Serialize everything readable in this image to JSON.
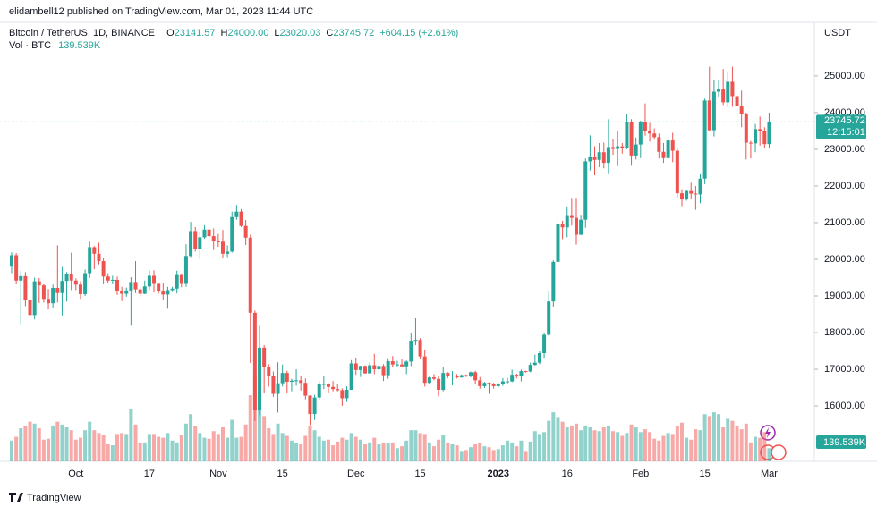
{
  "header": {
    "publisher": "elidambell12 published on TradingView.com, Mar 01, 2023 11:44 UTC"
  },
  "legend": {
    "symbol": "Bitcoin / TetherUS, 1D, BINANCE",
    "ohlc": [
      {
        "key": "O",
        "value": "23141.57"
      },
      {
        "key": "H",
        "value": "24000.00"
      },
      {
        "key": "L",
        "value": "23020.03"
      },
      {
        "key": "C",
        "value": "23745.72"
      }
    ],
    "change": "+604.15 (+2.61%)",
    "volume_name": "Vol · BTC"
  },
  "footer": {
    "brand": "TradingView"
  },
  "chart_data": {
    "type": "candlestick",
    "currency": "USDT",
    "countdown": "12:15:01",
    "up_color": "#26a69a",
    "down_color": "#ef5350",
    "grid": false,
    "ylim": [
      14490,
      26460
    ],
    "yticks": [
      {
        "value": 16000,
        "label": "16000.00"
      },
      {
        "value": 17000,
        "label": "17000.00"
      },
      {
        "value": 18000,
        "label": "18000.00"
      },
      {
        "value": 19000,
        "label": "19000.00"
      },
      {
        "value": 20000,
        "label": "20000.00"
      },
      {
        "value": 21000,
        "label": "21000.00"
      },
      {
        "value": 22000,
        "label": "22000.00"
      },
      {
        "value": 23000,
        "label": "23000.00"
      },
      {
        "value": 24000,
        "label": "24000.00"
      },
      {
        "value": 25000,
        "label": "25000.00"
      }
    ],
    "categories": [
      null,
      null,
      null,
      null,
      null,
      null,
      null,
      null,
      null,
      null,
      null,
      null,
      null,
      null,
      "Oct",
      null,
      null,
      null,
      null,
      null,
      null,
      null,
      null,
      null,
      null,
      null,
      null,
      null,
      null,
      null,
      "17",
      null,
      null,
      null,
      null,
      null,
      null,
      null,
      null,
      null,
      null,
      null,
      null,
      null,
      null,
      "Nov",
      null,
      null,
      null,
      null,
      null,
      null,
      null,
      null,
      null,
      null,
      null,
      null,
      null,
      "15",
      null,
      null,
      null,
      null,
      null,
      null,
      null,
      null,
      null,
      null,
      null,
      null,
      null,
      null,
      null,
      "Dec",
      null,
      null,
      null,
      null,
      null,
      null,
      null,
      null,
      null,
      null,
      null,
      null,
      null,
      "15",
      null,
      null,
      null,
      null,
      null,
      null,
      null,
      null,
      null,
      null,
      null,
      null,
      null,
      null,
      null,
      null,
      "2023",
      null,
      null,
      null,
      null,
      null,
      null,
      null,
      null,
      null,
      null,
      null,
      null,
      null,
      null,
      "16",
      null,
      null,
      null,
      null,
      null,
      null,
      null,
      null,
      null,
      null,
      null,
      null,
      null,
      null,
      null,
      "Feb",
      null,
      null,
      null,
      null,
      null,
      null,
      null,
      null,
      null,
      null,
      null,
      null,
      null,
      "15",
      null,
      null,
      null,
      null,
      null,
      null,
      null,
      null,
      null,
      null,
      null,
      null,
      null,
      "Mar"
    ],
    "candles": [
      [
        19800,
        20190,
        19620,
        20110
      ],
      [
        20110,
        20170,
        19320,
        19420
      ],
      [
        19420,
        19690,
        18230,
        19540
      ],
      [
        19540,
        19650,
        18720,
        18880
      ],
      [
        18880,
        19960,
        18130,
        18480
      ],
      [
        18480,
        19500,
        18360,
        19400
      ],
      [
        19400,
        19490,
        18810,
        19290
      ],
      [
        19290,
        19320,
        18820,
        18920
      ],
      [
        18920,
        19190,
        18630,
        18800
      ],
      [
        18800,
        19310,
        18680,
        19220
      ],
      [
        19220,
        20380,
        18820,
        19080
      ],
      [
        19080,
        19790,
        18470,
        19410
      ],
      [
        19410,
        19650,
        18850,
        19590
      ],
      [
        19590,
        20180,
        19160,
        19420
      ],
      [
        19420,
        19480,
        19160,
        19310
      ],
      [
        19310,
        19400,
        18920,
        19050
      ],
      [
        19050,
        19720,
        19000,
        19620
      ],
      [
        19620,
        20480,
        19490,
        20330
      ],
      [
        20330,
        20360,
        19730,
        20150
      ],
      [
        20150,
        20450,
        19860,
        19950
      ],
      [
        19950,
        20050,
        19320,
        19530
      ],
      [
        19530,
        19620,
        19360,
        19420
      ],
      [
        19420,
        19550,
        19320,
        19440
      ],
      [
        19440,
        19530,
        19030,
        19130
      ],
      [
        19130,
        19250,
        18860,
        19060
      ],
      [
        19060,
        19230,
        18980,
        19150
      ],
      [
        19150,
        19510,
        18190,
        19380
      ],
      [
        19380,
        19950,
        19080,
        19180
      ],
      [
        19180,
        19230,
        18980,
        19060
      ],
      [
        19060,
        19420,
        19050,
        19260
      ],
      [
        19260,
        19690,
        19160,
        19550
      ],
      [
        19550,
        19700,
        19100,
        19330
      ],
      [
        19330,
        19360,
        19060,
        19120
      ],
      [
        19120,
        19350,
        18900,
        19040
      ],
      [
        19040,
        19250,
        18650,
        19160
      ],
      [
        19160,
        19250,
        19110,
        19200
      ],
      [
        19200,
        19690,
        19070,
        19570
      ],
      [
        19570,
        19600,
        19240,
        19330
      ],
      [
        19330,
        20410,
        19250,
        20090
      ],
      [
        20090,
        21020,
        20060,
        20770
      ],
      [
        20770,
        20880,
        20210,
        20290
      ],
      [
        20290,
        20750,
        20000,
        20600
      ],
      [
        20600,
        20930,
        20560,
        20810
      ],
      [
        20810,
        20830,
        20510,
        20630
      ],
      [
        20630,
        20840,
        20250,
        20490
      ],
      [
        20490,
        20690,
        20340,
        20480
      ],
      [
        20480,
        20800,
        20050,
        20150
      ],
      [
        20150,
        20380,
        20060,
        20210
      ],
      [
        20210,
        21300,
        20180,
        21150
      ],
      [
        21150,
        21480,
        21080,
        21300
      ],
      [
        21300,
        21370,
        20880,
        20910
      ],
      [
        20910,
        21070,
        20390,
        20590
      ],
      [
        20590,
        20670,
        17170,
        18540
      ],
      [
        18540,
        18600,
        15590,
        15880
      ],
      [
        15880,
        18190,
        15750,
        17590
      ],
      [
        17590,
        17660,
        16360,
        17070
      ],
      [
        17070,
        17140,
        16530,
        16810
      ],
      [
        16810,
        16940,
        16250,
        16330
      ],
      [
        16330,
        17190,
        15820,
        16620
      ],
      [
        16620,
        17130,
        16530,
        16900
      ],
      [
        16900,
        16960,
        16360,
        16660
      ],
      [
        16660,
        16740,
        16400,
        16690
      ],
      [
        16690,
        17000,
        16550,
        16700
      ],
      [
        16700,
        16820,
        16420,
        16630
      ],
      [
        16630,
        16750,
        16180,
        16280
      ],
      [
        16280,
        16290,
        15480,
        15780
      ],
      [
        15780,
        16300,
        15620,
        16230
      ],
      [
        16230,
        16680,
        16170,
        16600
      ],
      [
        16600,
        16810,
        16460,
        16600
      ],
      [
        16600,
        16620,
        16350,
        16520
      ],
      [
        16520,
        16680,
        16400,
        16460
      ],
      [
        16460,
        16600,
        16400,
        16430
      ],
      [
        16430,
        16480,
        16000,
        16210
      ],
      [
        16210,
        16530,
        16110,
        16440
      ],
      [
        16440,
        17250,
        16440,
        17160
      ],
      [
        17160,
        17320,
        16850,
        16980
      ],
      [
        16980,
        17100,
        16790,
        17090
      ],
      [
        17090,
        17110,
        16880,
        16890
      ],
      [
        16890,
        17190,
        16880,
        17110
      ],
      [
        17110,
        17420,
        16870,
        17000
      ],
      [
        17000,
        17110,
        16910,
        17090
      ],
      [
        17090,
        17140,
        16680,
        16840
      ],
      [
        16840,
        17300,
        16740,
        17220
      ],
      [
        17220,
        17360,
        17060,
        17130
      ],
      [
        17130,
        17230,
        17080,
        17130
      ],
      [
        17130,
        17270,
        17070,
        17080
      ],
      [
        17080,
        17240,
        16870,
        17210
      ],
      [
        17210,
        18000,
        17090,
        17780
      ],
      [
        17780,
        18390,
        17660,
        17800
      ],
      [
        17800,
        17850,
        17270,
        17350
      ],
      [
        17350,
        17530,
        16530,
        16630
      ],
      [
        16630,
        16800,
        16590,
        16780
      ],
      [
        16780,
        16870,
        16700,
        16740
      ],
      [
        16740,
        16810,
        16260,
        16440
      ],
      [
        16440,
        17060,
        16400,
        16900
      ],
      [
        16900,
        16920,
        16760,
        16820
      ],
      [
        16820,
        16950,
        16560,
        16830
      ],
      [
        16830,
        16870,
        16750,
        16780
      ],
      [
        16780,
        16860,
        16770,
        16840
      ],
      [
        16840,
        16860,
        16790,
        16830
      ],
      [
        16830,
        16940,
        16780,
        16920
      ],
      [
        16920,
        16960,
        16590,
        16700
      ],
      [
        16700,
        16790,
        16470,
        16540
      ],
      [
        16540,
        16660,
        16490,
        16630
      ],
      [
        16630,
        16640,
        16330,
        16600
      ],
      [
        16600,
        16630,
        16470,
        16540
      ],
      [
        16540,
        16630,
        16500,
        16610
      ],
      [
        16610,
        16760,
        16550,
        16670
      ],
      [
        16670,
        16770,
        16600,
        16670
      ],
      [
        16670,
        16990,
        16650,
        16850
      ],
      [
        16850,
        16880,
        16750,
        16830
      ],
      [
        16830,
        16990,
        16670,
        16950
      ],
      [
        16950,
        16960,
        16910,
        16940
      ],
      [
        16940,
        17180,
        16920,
        17120
      ],
      [
        17120,
        17400,
        17100,
        17180
      ],
      [
        17180,
        17490,
        17140,
        17440
      ],
      [
        17440,
        18000,
        17310,
        17940
      ],
      [
        17940,
        19120,
        17910,
        18850
      ],
      [
        18850,
        19970,
        18710,
        19930
      ],
      [
        19930,
        21260,
        19890,
        20950
      ],
      [
        20950,
        21050,
        20550,
        20870
      ],
      [
        20870,
        21440,
        20600,
        21180
      ],
      [
        21180,
        21650,
        20920,
        21130
      ],
      [
        21130,
        21650,
        20400,
        20670
      ],
      [
        20670,
        21190,
        20660,
        21080
      ],
      [
        21080,
        22750,
        20860,
        22670
      ],
      [
        22670,
        23380,
        22420,
        22780
      ],
      [
        22780,
        23080,
        22290,
        22710
      ],
      [
        22710,
        23170,
        22510,
        22920
      ],
      [
        22920,
        23180,
        22480,
        22630
      ],
      [
        22630,
        23820,
        22320,
        23060
      ],
      [
        23060,
        23290,
        22850,
        23010
      ],
      [
        23010,
        23500,
        22540,
        23080
      ],
      [
        23080,
        23170,
        22880,
        23030
      ],
      [
        23030,
        23960,
        23000,
        23740
      ],
      [
        23740,
        23820,
        22550,
        22830
      ],
      [
        22830,
        23320,
        22720,
        23130
      ],
      [
        23130,
        23780,
        22760,
        23730
      ],
      [
        23730,
        24250,
        23370,
        23490
      ],
      [
        23490,
        23720,
        23210,
        23430
      ],
      [
        23430,
        23570,
        23260,
        23330
      ],
      [
        23330,
        23430,
        22750,
        22930
      ],
      [
        22930,
        23170,
        22630,
        22760
      ],
      [
        22760,
        23350,
        22740,
        23240
      ],
      [
        23240,
        23450,
        22650,
        22960
      ],
      [
        22960,
        23010,
        21690,
        21800
      ],
      [
        21800,
        21910,
        21450,
        21630
      ],
      [
        21630,
        21900,
        21600,
        21860
      ],
      [
        21860,
        22090,
        21630,
        21790
      ],
      [
        21790,
        22000,
        21350,
        21770
      ],
      [
        21770,
        22320,
        21530,
        22200
      ],
      [
        22200,
        24380,
        22050,
        24330
      ],
      [
        24330,
        25250,
        23500,
        23520
      ],
      [
        23520,
        24880,
        23350,
        24570
      ],
      [
        24570,
        24880,
        24420,
        24630
      ],
      [
        24630,
        25190,
        24210,
        24280
      ],
      [
        24280,
        25120,
        24150,
        24840
      ],
      [
        24840,
        25250,
        24160,
        24450
      ],
      [
        24450,
        24480,
        23600,
        24190
      ],
      [
        24190,
        24600,
        23600,
        23950
      ],
      [
        23950,
        24000,
        22720,
        23180
      ],
      [
        23180,
        23230,
        22750,
        23160
      ],
      [
        23160,
        23690,
        22920,
        23550
      ],
      [
        23550,
        23890,
        23100,
        23490
      ],
      [
        23490,
        23600,
        23030,
        23140
      ],
      [
        23141.57,
        24000,
        23020.03,
        23745.72
      ]
    ],
    "volume": [
      220,
      260,
      350,
      380,
      420,
      400,
      350,
      230,
      240,
      380,
      420,
      390,
      360,
      330,
      230,
      250,
      330,
      420,
      330,
      300,
      280,
      180,
      170,
      290,
      300,
      290,
      560,
      390,
      200,
      200,
      290,
      290,
      260,
      250,
      300,
      220,
      200,
      280,
      400,
      500,
      370,
      300,
      250,
      240,
      320,
      290,
      360,
      250,
      440,
      250,
      260,
      390,
      700,
      900,
      600,
      480,
      350,
      290,
      400,
      300,
      270,
      220,
      190,
      180,
      270,
      380,
      330,
      260,
      220,
      230,
      170,
      210,
      250,
      230,
      300,
      260,
      230,
      180,
      200,
      250,
      180,
      200,
      190,
      200,
      140,
      160,
      220,
      330,
      330,
      300,
      290,
      200,
      160,
      230,
      280,
      200,
      180,
      170,
      110,
      120,
      150,
      180,
      200,
      160,
      150,
      120,
      130,
      170,
      220,
      200,
      160,
      220,
      110,
      210,
      320,
      290,
      310,
      430,
      520,
      470,
      420,
      360,
      380,
      400,
      330,
      380,
      360,
      330,
      320,
      360,
      380,
      320,
      310,
      270,
      300,
      390,
      360,
      310,
      340,
      310,
      240,
      220,
      270,
      300,
      290,
      370,
      410,
      250,
      230,
      340,
      330,
      500,
      480,
      520,
      500,
      360,
      450,
      430,
      380,
      340,
      400,
      200,
      260,
      250,
      310,
      139.539
    ],
    "volume_value_label": "139.539K"
  }
}
